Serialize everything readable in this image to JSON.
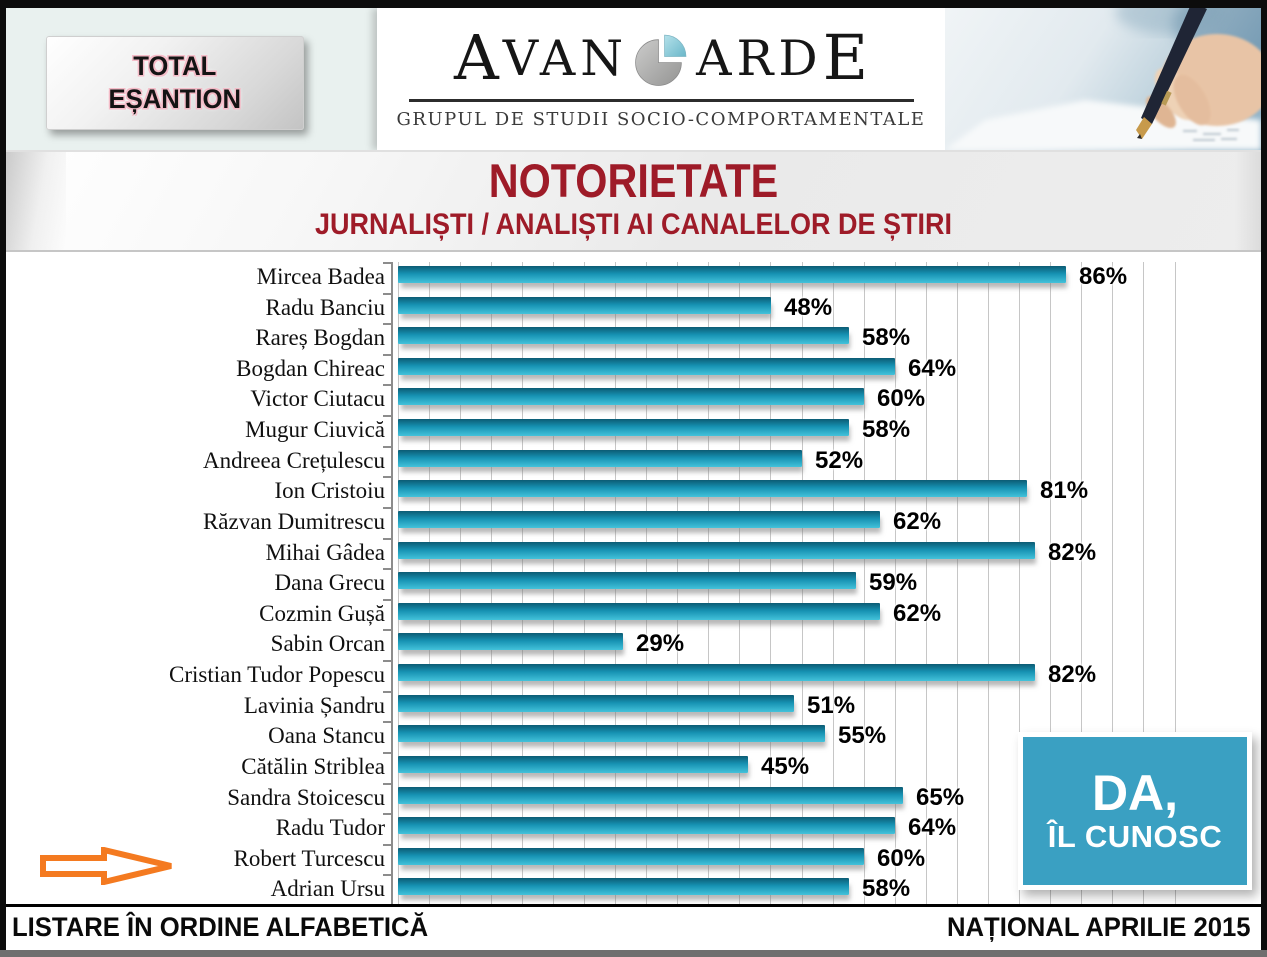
{
  "header": {
    "badge": {
      "line1": "TOTAL",
      "line2": "EȘANTION"
    },
    "logo": {
      "word_left_initial": "A",
      "word_left_rest": "VAN",
      "word_right_rest": "ARD",
      "word_right_final": "E",
      "tagline": "GRUPUL DE STUDII SOCIO-COMPORTAMENTALE",
      "pie_icon_colors": {
        "gray": "#b2b2b0",
        "teal": "#8ccfdc"
      }
    }
  },
  "title_band": {
    "title": "NOTORIETATE",
    "subtitle": "JURNALIȘTI / ANALIȘTI AI CANALELOR DE ȘTIRI",
    "text_color": "#9e1b28"
  },
  "chart_data": {
    "type": "bar",
    "orientation": "horizontal",
    "title": "NOTORIETATE",
    "subtitle": "JURNALIȘTI / ANALIȘTI AI CANALELOR DE ȘTIRI",
    "categories": [
      "Mircea Badea",
      "Radu Banciu",
      "Rareș Bogdan",
      "Bogdan Chireac",
      "Victor Ciutacu",
      "Mugur Ciuvică",
      "Andreea Crețulescu",
      "Ion Cristoiu",
      "Răzvan Dumitrescu",
      "Mihai Gâdea",
      "Dana Grecu",
      "Cozmin Gușă",
      "Sabin Orcan",
      "Cristian Tudor Popescu",
      "Lavinia Șandru",
      "Oana Stancu",
      "Cătălin Striblea",
      "Sandra Stoicescu",
      "Radu Tudor",
      "Robert Turcescu",
      "Adrian Ursu"
    ],
    "values": [
      86,
      48,
      58,
      64,
      60,
      58,
      52,
      81,
      62,
      82,
      59,
      62,
      29,
      82,
      51,
      55,
      45,
      65,
      64,
      60,
      58
    ],
    "value_suffix": "%",
    "xlim": [
      0,
      100
    ],
    "gridlines": true,
    "gridline_step_pct": 4,
    "legend": "none",
    "bar_color_top": "#0c5c74",
    "bar_color_mid": "#1691b2",
    "bar_color_bottom": "#43c2da",
    "highlight": {
      "category": "Robert Turcescu",
      "marker": "orange-arrow",
      "arrow_color": "#f47a20"
    }
  },
  "annotation_box": {
    "line1": "DA,",
    "line2": "ÎL CUNOSC",
    "bg_color": "#3aa0c2"
  },
  "footer": {
    "left": "LISTARE ÎN ORDINE ALFABETICĂ",
    "right": "NAȚIONAL APRILIE 2015"
  }
}
